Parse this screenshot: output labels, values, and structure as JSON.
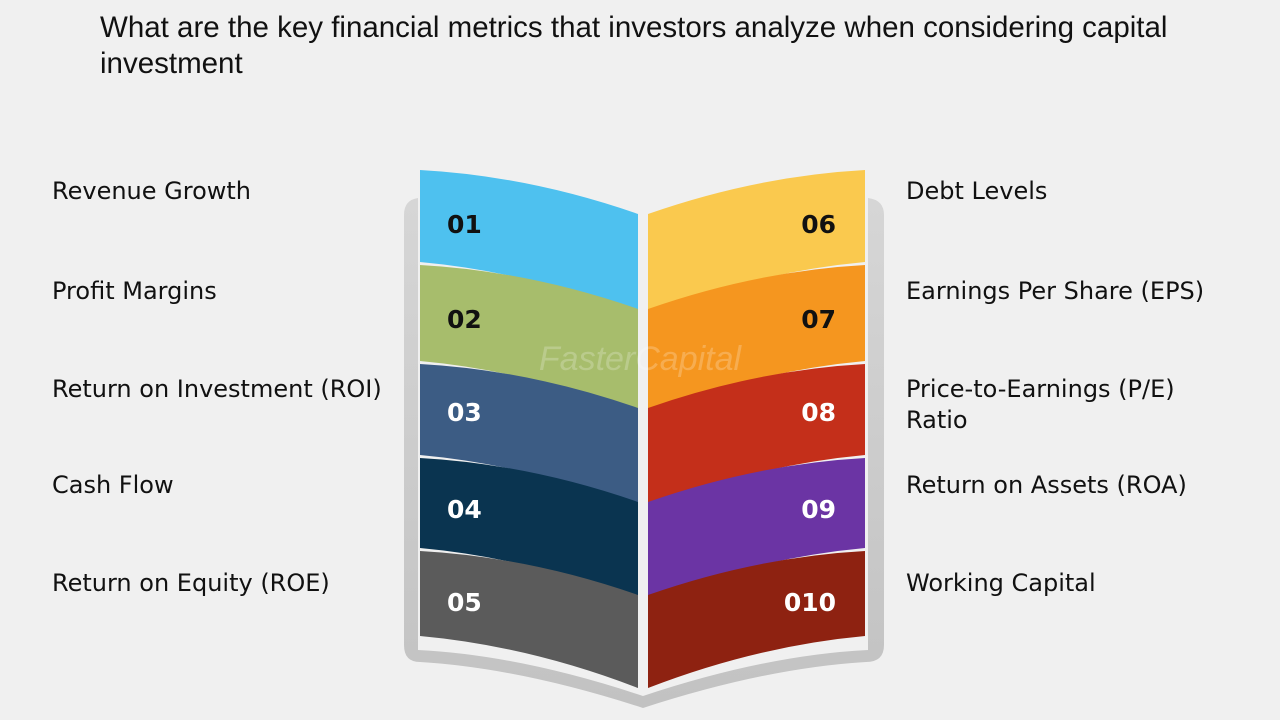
{
  "title": "What are the key financial metrics that investors analyze when considering capital investment",
  "watermark": "FasterCapital",
  "left_items": [
    {
      "number": "01",
      "label": "Revenue Growth",
      "color": "#4ec1ef",
      "text_color": "#111111"
    },
    {
      "number": "02",
      "label": "Profit Margins",
      "color": "#a7bd6c",
      "text_color": "#111111"
    },
    {
      "number": "03",
      "label": "Return on Investment (ROI)",
      "color": "#3c5c84",
      "text_color": "#ffffff"
    },
    {
      "number": "04",
      "label": "Cash Flow",
      "color": "#0a3450",
      "text_color": "#ffffff"
    },
    {
      "number": "05",
      "label": "Return on Equity (ROE)",
      "color": "#5b5b5b",
      "text_color": "#ffffff"
    }
  ],
  "right_items": [
    {
      "number": "06",
      "label": "Debt Levels",
      "color": "#fac94e",
      "text_color": "#111111"
    },
    {
      "number": "07",
      "label": "Earnings Per Share (EPS)",
      "color": "#f5961f",
      "text_color": "#111111"
    },
    {
      "number": "08",
      "label": "Price-to-Earnings (P/E) Ratio",
      "color": "#c42f1a",
      "text_color": "#ffffff"
    },
    {
      "number": "09",
      "label": "Return on Assets (ROA)",
      "color": "#6b34a4",
      "text_color": "#ffffff"
    },
    {
      "number": "010",
      "label": "Working Capital",
      "color": "#8e2211",
      "text_color": "#ffffff"
    }
  ]
}
